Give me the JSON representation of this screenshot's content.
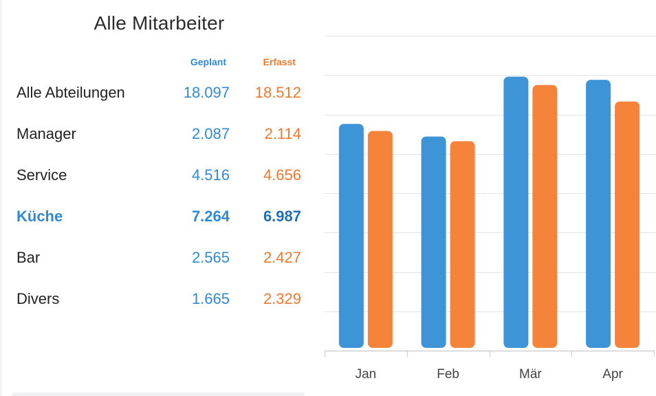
{
  "panel": {
    "title": "Alle Mitarbeiter",
    "columns": {
      "planned": "Geplant",
      "recorded": "Erfasst"
    },
    "rows": [
      {
        "name": "Alle Abteilungen",
        "planned": "18.097",
        "recorded": "18.512"
      },
      {
        "name": "Manager",
        "planned": "2.087",
        "recorded": "2.114"
      },
      {
        "name": "Service",
        "planned": "4.516",
        "recorded": "4.656"
      },
      {
        "name": "Küche",
        "planned": "7.264",
        "recorded": "6.987"
      },
      {
        "name": "Bar",
        "planned": "2.565",
        "recorded": "2.427"
      },
      {
        "name": "Divers",
        "planned": "1.665",
        "recorded": "2.329"
      }
    ],
    "active_row": "Küche"
  },
  "colors": {
    "planned": "#3d95d8",
    "recorded": "#f5843a",
    "grid": "#e3e3e3",
    "axis": "#d0d0d0",
    "tick_text": "#444444"
  },
  "chart_data": {
    "type": "bar",
    "categories": [
      "Jan",
      "Feb",
      "Mär",
      "Apr"
    ],
    "series": [
      {
        "values": [
          5760,
          5440,
          6960,
          6880
        ]
      },
      {
        "values": [
          5580,
          5320,
          6750,
          6330
        ]
      }
    ],
    "ylim": [
      0,
      8000
    ],
    "grid": true,
    "legend": "none"
  }
}
